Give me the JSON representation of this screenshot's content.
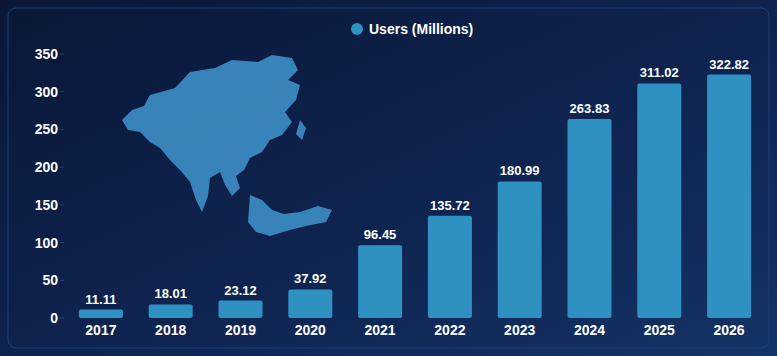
{
  "chart_data": {
    "type": "bar",
    "categories": [
      "2017",
      "2018",
      "2019",
      "2020",
      "2021",
      "2022",
      "2023",
      "2024",
      "2025",
      "2026"
    ],
    "series": [
      {
        "name": "Users (Millions)",
        "color": "#2f90c2",
        "values": [
          11.11,
          18.01,
          23.12,
          37.92,
          96.45,
          135.72,
          180.99,
          263.83,
          311.02,
          322.82
        ]
      }
    ],
    "ylim": [
      0,
      350
    ],
    "yticks": [
      0,
      50,
      100,
      150,
      200,
      250,
      300,
      350
    ],
    "grid": false,
    "data_labels": true,
    "legend": "top"
  }
}
